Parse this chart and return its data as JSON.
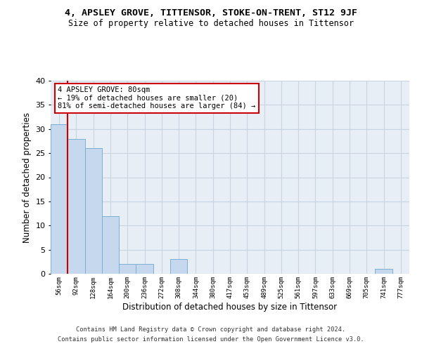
{
  "title1": "4, APSLEY GROVE, TITTENSOR, STOKE-ON-TRENT, ST12 9JF",
  "title2": "Size of property relative to detached houses in Tittensor",
  "xlabel": "Distribution of detached houses by size in Tittensor",
  "ylabel": "Number of detached properties",
  "categories": [
    "56sqm",
    "92sqm",
    "128sqm",
    "164sqm",
    "200sqm",
    "236sqm",
    "272sqm",
    "308sqm",
    "344sqm",
    "380sqm",
    "417sqm",
    "453sqm",
    "489sqm",
    "525sqm",
    "561sqm",
    "597sqm",
    "633sqm",
    "669sqm",
    "705sqm",
    "741sqm",
    "777sqm"
  ],
  "values": [
    31,
    28,
    26,
    12,
    2,
    2,
    0,
    3,
    0,
    0,
    0,
    0,
    0,
    0,
    0,
    0,
    0,
    0,
    0,
    1,
    0
  ],
  "bar_color": "#c5d8ed",
  "bar_edge_color": "#7bafd4",
  "annotation_text_line1": "4 APSLEY GROVE: 80sqm",
  "annotation_text_line2": "← 19% of detached houses are smaller (20)",
  "annotation_text_line3": "81% of semi-detached houses are larger (84) →",
  "annotation_box_facecolor": "#ffffff",
  "annotation_box_edgecolor": "#cc0000",
  "vline_color": "#cc0000",
  "vline_x": 0.5,
  "grid_color": "#c8d4e0",
  "background_color": "#e8eef5",
  "footer1": "Contains HM Land Registry data © Crown copyright and database right 2024.",
  "footer2": "Contains public sector information licensed under the Open Government Licence v3.0.",
  "ylim": [
    0,
    40
  ],
  "title1_fontsize": 9.5,
  "title2_fontsize": 8.5
}
